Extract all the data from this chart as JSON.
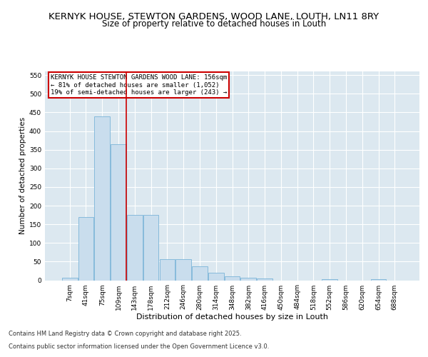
{
  "title1": "KERNYK HOUSE, STEWTON GARDENS, WOOD LANE, LOUTH, LN11 8RY",
  "title2": "Size of property relative to detached houses in Louth",
  "xlabel": "Distribution of detached houses by size in Louth",
  "ylabel": "Number of detached properties",
  "bar_color": "#c9dded",
  "bar_edge_color": "#7ab4d8",
  "bg_color": "#dce8f0",
  "categories": [
    "7sqm",
    "41sqm",
    "75sqm",
    "109sqm",
    "143sqm",
    "178sqm",
    "212sqm",
    "246sqm",
    "280sqm",
    "314sqm",
    "348sqm",
    "382sqm",
    "416sqm",
    "450sqm",
    "484sqm",
    "518sqm",
    "552sqm",
    "586sqm",
    "620sqm",
    "654sqm",
    "688sqm"
  ],
  "values": [
    7,
    170,
    440,
    365,
    175,
    175,
    57,
    57,
    37,
    20,
    10,
    7,
    5,
    0,
    0,
    0,
    2,
    0,
    0,
    3,
    0
  ],
  "vline_position": 3.5,
  "vline_color": "#cc0000",
  "annotation_text": "KERNYK HOUSE STEWTON GARDENS WOOD LANE: 156sqm\n← 81% of detached houses are smaller (1,052)\n19% of semi-detached houses are larger (243) →",
  "annotation_box_color": "#cc0000",
  "ylim": [
    0,
    560
  ],
  "yticks": [
    0,
    50,
    100,
    150,
    200,
    250,
    300,
    350,
    400,
    450,
    500,
    550
  ],
  "footnote1": "Contains HM Land Registry data © Crown copyright and database right 2025.",
  "footnote2": "Contains public sector information licensed under the Open Government Licence v3.0.",
  "title_fontsize": 9.5,
  "subtitle_fontsize": 8.5,
  "ylabel_fontsize": 7.5,
  "xlabel_fontsize": 8,
  "tick_fontsize": 6.5,
  "footnote_fontsize": 6
}
